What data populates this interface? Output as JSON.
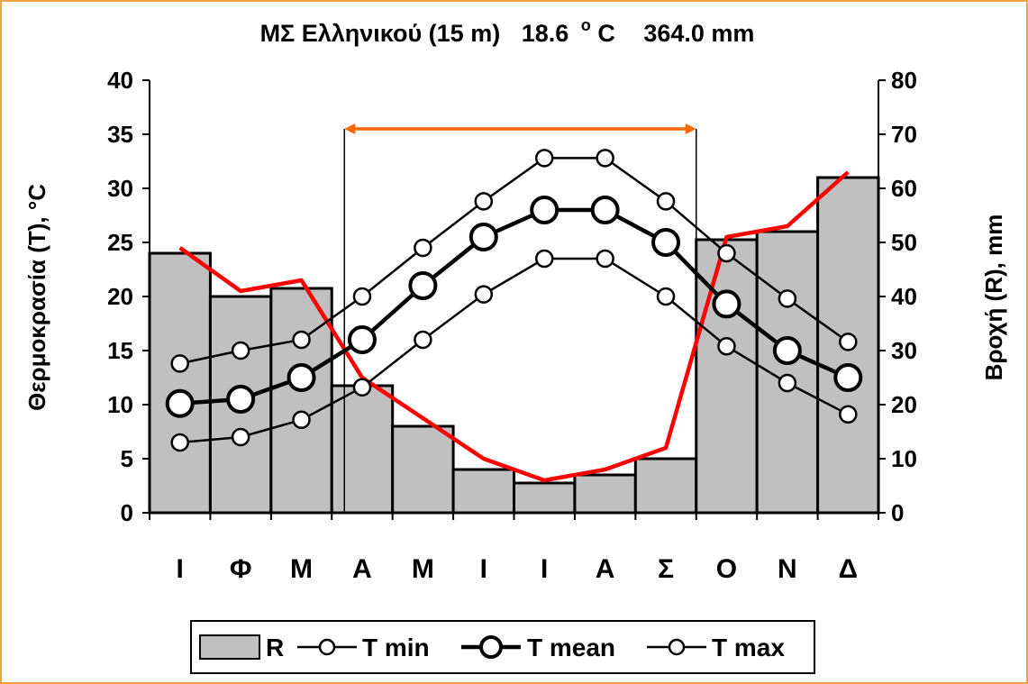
{
  "chart_data": {
    "type": "bar",
    "title": "ΜΣ Ελληνικού (15 m)  18.6 °C   364.0 mm",
    "title_parts": {
      "station": "ΜΣ Ελληνικού (15 m)",
      "temp_value": "18.6",
      "temp_unit_o": "o",
      "temp_unit_c": "C",
      "rain": "364.0 mm"
    },
    "categories": [
      "Ι",
      "Φ",
      "Μ",
      "Α",
      "Μ",
      "Ι",
      "Ι",
      "Α",
      "Σ",
      "Ο",
      "Ν",
      "Δ"
    ],
    "ylabel": "Θερμοκρασία (Τ), °C",
    "y2label": "Βροχή (R), mm",
    "ylim": [
      0,
      40
    ],
    "y2lim": [
      0,
      80
    ],
    "yticks": [
      "0",
      "5",
      "10",
      "15",
      "20",
      "25",
      "30",
      "35",
      "40"
    ],
    "y2ticks": [
      "0",
      "10",
      "20",
      "30",
      "40",
      "50",
      "60",
      "70",
      "80"
    ],
    "legend_position": "bottom",
    "series": [
      {
        "name": "R",
        "kind": "bar",
        "axis": "right",
        "color": "#c0c0c0",
        "values": [
          48,
          40,
          41.5,
          23.5,
          16,
          8,
          5.5,
          7,
          10,
          50.5,
          52,
          62
        ]
      },
      {
        "name": "T min",
        "kind": "line",
        "marker": "small-circle",
        "values": [
          6.5,
          7,
          8.6,
          11.6,
          16,
          20.2,
          23.5,
          23.5,
          20,
          15.4,
          12,
          9.1
        ]
      },
      {
        "name": "T mean",
        "kind": "line",
        "marker": "large-circle",
        "bold": true,
        "values": [
          10.1,
          10.5,
          12.5,
          16,
          21,
          25.5,
          28,
          28,
          25,
          19.3,
          15,
          12.5
        ]
      },
      {
        "name": "T max",
        "kind": "line",
        "marker": "small-circle",
        "values": [
          13.8,
          15,
          16,
          20,
          24.5,
          28.8,
          32.8,
          32.8,
          28.8,
          24,
          19.8,
          15.8
        ]
      },
      {
        "kind": "line",
        "axis": "right",
        "color": "#ff0000",
        "values": [
          49,
          41,
          43,
          25,
          17.5,
          10,
          6,
          8,
          12,
          51,
          53,
          63
        ]
      }
    ],
    "dry_period": {
      "from_month_index": 3,
      "to_month_index": 8,
      "color": "#ff6600"
    }
  }
}
